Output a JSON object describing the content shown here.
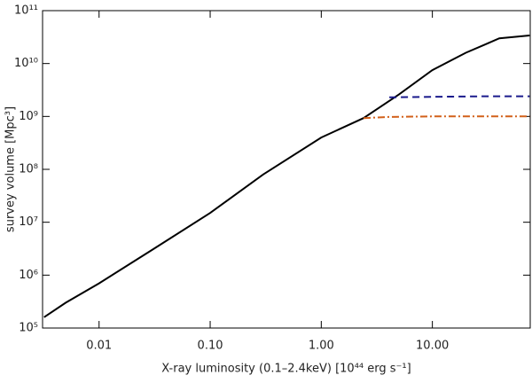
{
  "chart_data": {
    "type": "line",
    "xlabel": "X-ray luminosity (0.1–2.4keV)   [10⁴⁴  erg s⁻¹]",
    "ylabel": "survey volume [Mpc³]",
    "xscale": "log",
    "yscale": "log",
    "xlim": [
      0.0031,
      76
    ],
    "ylim": [
      100000,
      100000000000
    ],
    "xticks": [
      {
        "value": 0.01,
        "label": "0.01"
      },
      {
        "value": 0.1,
        "label": "0.10"
      },
      {
        "value": 1,
        "label": "1.00"
      },
      {
        "value": 10,
        "label": "10.00"
      }
    ],
    "yticks": [
      {
        "value": 100000,
        "label": "10⁵"
      },
      {
        "value": 1000000,
        "label": "10⁶"
      },
      {
        "value": 10000000,
        "label": "10⁷"
      },
      {
        "value": 100000000,
        "label": "10⁸"
      },
      {
        "value": 1000000000,
        "label": "10⁹"
      },
      {
        "value": 10000000000,
        "label": "10¹⁰"
      },
      {
        "value": 100000000000,
        "label": "10¹¹"
      }
    ],
    "series": [
      {
        "color": "#000000",
        "dash": "none",
        "x": [
          0.0032,
          0.005,
          0.01,
          0.03,
          0.1,
          0.3,
          1,
          2.4,
          5,
          10,
          20,
          30,
          40,
          75
        ],
        "values": [
          160000,
          300000,
          700000,
          3000000,
          15000000,
          80000000,
          400000000,
          930000000,
          2600000000,
          7500000000,
          16000000000,
          23000000000,
          30000000000,
          34000000000
        ]
      },
      {
        "color": "#1a1a8c",
        "dash": "8 5",
        "x": [
          4.1,
          10,
          30,
          75
        ],
        "values": [
          2300000000,
          2350000000,
          2400000000,
          2400000000
        ]
      },
      {
        "color": "#d2601a",
        "dash": "8 3 2 3",
        "x": [
          2.4,
          4,
          10,
          30,
          75
        ],
        "values": [
          930000000,
          980000000,
          1000000000,
          1000000000,
          1000000000
        ]
      }
    ]
  }
}
